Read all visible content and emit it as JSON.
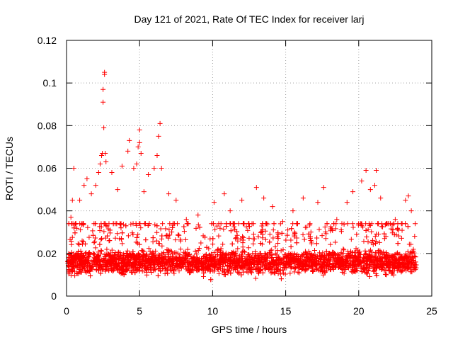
{
  "chart_data": {
    "type": "scatter",
    "title": "Day 121 of 2021, Rate Of TEC Index for receiver larj",
    "xlabel": "GPS time / hours",
    "ylabel": "ROTI / TECUs",
    "xlim": [
      0,
      25
    ],
    "ylim": [
      0,
      0.12
    ],
    "xticks": [
      0,
      5,
      10,
      15,
      20,
      25
    ],
    "yticks": [
      0,
      0.02,
      0.04,
      0.06,
      0.08,
      0.1,
      0.12
    ],
    "xtick_labels": [
      "0",
      "5",
      "10",
      "15",
      "20",
      "25"
    ],
    "ytick_labels": [
      "0",
      "0.02",
      "0.04",
      "0.06",
      "0.08",
      "0.1",
      "0.12"
    ],
    "grid": true,
    "marker": "+",
    "color": "#ff0000",
    "series": [
      {
        "name": "ROTI",
        "x": [
          0.3,
          0.4,
          0.5,
          0.9,
          1.2,
          1.4,
          1.7,
          2.0,
          2.2,
          2.3,
          2.4,
          2.45,
          2.5,
          2.5,
          2.55,
          2.6,
          2.6,
          2.65,
          2.7,
          3.1,
          3.5,
          3.8,
          4.2,
          4.3,
          4.6,
          4.8,
          4.9,
          5.0,
          5.0,
          5.1,
          5.3,
          5.6,
          6.0,
          6.2,
          6.3,
          6.4,
          6.5,
          7.0,
          7.5,
          8.2,
          9.0,
          10.1,
          10.8,
          11.2,
          12.0,
          13.0,
          13.5,
          14.1,
          14.8,
          15.5,
          16.2,
          17.2,
          17.6,
          18.5,
          19.2,
          19.6,
          20.2,
          20.5,
          20.8,
          21.1,
          21.2,
          21.5,
          22.5,
          23.2,
          23.4,
          23.6
        ],
        "y": [
          0.037,
          0.045,
          0.06,
          0.045,
          0.052,
          0.055,
          0.048,
          0.052,
          0.058,
          0.062,
          0.066,
          0.067,
          0.091,
          0.097,
          0.079,
          0.104,
          0.105,
          0.067,
          0.063,
          0.058,
          0.05,
          0.061,
          0.068,
          0.073,
          0.06,
          0.062,
          0.07,
          0.072,
          0.078,
          0.067,
          0.049,
          0.057,
          0.06,
          0.066,
          0.075,
          0.081,
          0.06,
          0.048,
          0.045,
          0.036,
          0.038,
          0.044,
          0.048,
          0.04,
          0.045,
          0.051,
          0.046,
          0.042,
          0.035,
          0.04,
          0.046,
          0.044,
          0.051,
          0.036,
          0.044,
          0.049,
          0.054,
          0.059,
          0.05,
          0.052,
          0.059,
          0.046,
          0.036,
          0.045,
          0.047,
          0.04
        ]
      }
    ]
  }
}
